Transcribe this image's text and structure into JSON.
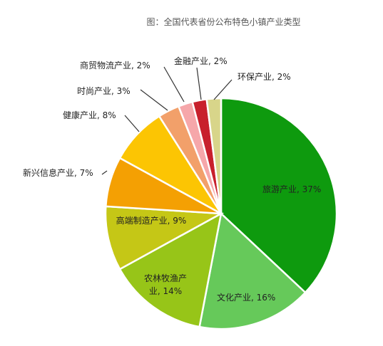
{
  "chart_data": {
    "type": "pie",
    "title": "图：全国代表省份公布特色小镇产业类型",
    "slices": [
      {
        "name": "旅游产业",
        "value": 37,
        "color": "#0e9a0e",
        "label": "旅游产业, 37%"
      },
      {
        "name": "文化产业",
        "value": 16,
        "color": "#66c95a",
        "label": "文化产业, 16%"
      },
      {
        "name": "农林牧渔产业",
        "value": 14,
        "color": "#97c518",
        "label": "农林牧渔产业, 14%"
      },
      {
        "name": "高端制造产业",
        "value": 9,
        "color": "#c5c716",
        "label": "高端制造产业, 9%"
      },
      {
        "name": "新兴信息产业",
        "value": 7,
        "color": "#f4a003",
        "label": "新兴信息产业, 7%"
      },
      {
        "name": "健康产业",
        "value": 8,
        "color": "#fcc503",
        "label": "健康产业, 8%"
      },
      {
        "name": "时尚产业",
        "value": 3,
        "color": "#f2a06a",
        "label": "时尚产业, 3%"
      },
      {
        "name": "商贸物流产业",
        "value": 2,
        "color": "#f6a7aa",
        "label": "商贸物流产业, 2%"
      },
      {
        "name": "金融产业",
        "value": 2,
        "color": "#c8202c",
        "label": "金融产业, 2%"
      },
      {
        "name": "环保产业",
        "value": 2,
        "color": "#d8d58a",
        "label": "环保产业, 2%"
      }
    ]
  }
}
